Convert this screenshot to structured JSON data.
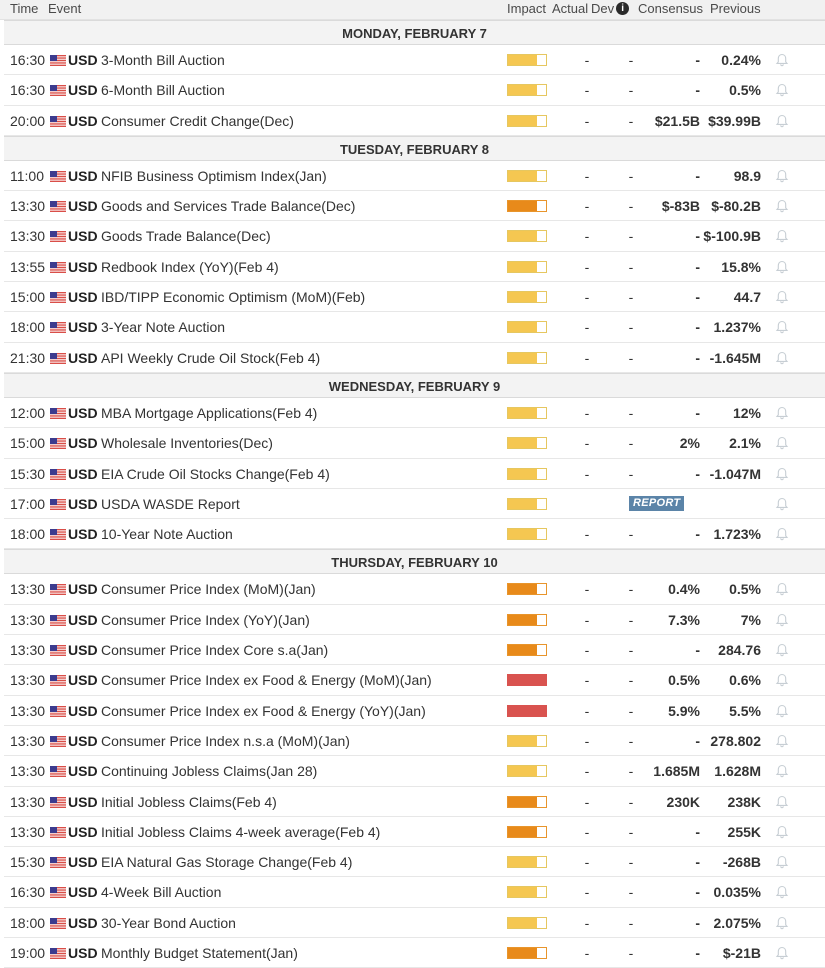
{
  "header": {
    "time": "Time",
    "event": "Event",
    "impact": "Impact",
    "actual": "Actual",
    "dev": "Dev",
    "info": "i",
    "consensus": "Consensus",
    "previous": "Previous"
  },
  "colors": {
    "low": "#f5c751",
    "medium": "#e88a1a",
    "high": "#d9534f",
    "report": "#5b84a8"
  },
  "days": [
    {
      "label": "MONDAY, FEBRUARY 7",
      "rows": [
        {
          "time": "16:30",
          "cur": "USD",
          "event": "3-Month Bill Auction",
          "impact": "low",
          "actual": "-",
          "dev": "-",
          "cons": "-",
          "prev": "0.24%"
        },
        {
          "time": "16:30",
          "cur": "USD",
          "event": "6-Month Bill Auction",
          "impact": "low",
          "actual": "-",
          "dev": "-",
          "cons": "-",
          "prev": "0.5%"
        },
        {
          "time": "20:00",
          "cur": "USD",
          "event": "Consumer Credit Change(Dec)",
          "impact": "low",
          "actual": "-",
          "dev": "-",
          "cons": "$21.5B",
          "prev": "$39.99B"
        }
      ]
    },
    {
      "label": "TUESDAY, FEBRUARY 8",
      "rows": [
        {
          "time": "11:00",
          "cur": "USD",
          "event": "NFIB Business Optimism Index(Jan)",
          "impact": "low",
          "actual": "-",
          "dev": "-",
          "cons": "-",
          "prev": "98.9"
        },
        {
          "time": "13:30",
          "cur": "USD",
          "event": "Goods and Services Trade Balance(Dec)",
          "impact": "medium",
          "actual": "-",
          "dev": "-",
          "cons": "$-83B",
          "prev": "$-80.2B"
        },
        {
          "time": "13:30",
          "cur": "USD",
          "event": "Goods Trade Balance(Dec)",
          "impact": "low",
          "actual": "-",
          "dev": "-",
          "cons": "-",
          "prev": "$-100.9B"
        },
        {
          "time": "13:55",
          "cur": "USD",
          "event": "Redbook Index (YoY)(Feb 4)",
          "impact": "low",
          "actual": "-",
          "dev": "-",
          "cons": "-",
          "prev": "15.8%"
        },
        {
          "time": "15:00",
          "cur": "USD",
          "event": "IBD/TIPP Economic Optimism (MoM)(Feb)",
          "impact": "low",
          "actual": "-",
          "dev": "-",
          "cons": "-",
          "prev": "44.7"
        },
        {
          "time": "18:00",
          "cur": "USD",
          "event": "3-Year Note Auction",
          "impact": "low",
          "actual": "-",
          "dev": "-",
          "cons": "-",
          "prev": "1.237%"
        },
        {
          "time": "21:30",
          "cur": "USD",
          "event": "API Weekly Crude Oil Stock(Feb 4)",
          "impact": "low",
          "actual": "-",
          "dev": "-",
          "cons": "-",
          "prev": "-1.645M"
        }
      ]
    },
    {
      "label": "WEDNESDAY, FEBRUARY 9",
      "rows": [
        {
          "time": "12:00",
          "cur": "USD",
          "event": "MBA Mortgage Applications(Feb 4)",
          "impact": "low",
          "actual": "-",
          "dev": "-",
          "cons": "-",
          "prev": "12%"
        },
        {
          "time": "15:00",
          "cur": "USD",
          "event": "Wholesale Inventories(Dec)",
          "impact": "low",
          "actual": "-",
          "dev": "-",
          "cons": "2%",
          "prev": "2.1%"
        },
        {
          "time": "15:30",
          "cur": "USD",
          "event": "EIA Crude Oil Stocks Change(Feb 4)",
          "impact": "low",
          "actual": "-",
          "dev": "-",
          "cons": "-",
          "prev": "-1.047M"
        },
        {
          "time": "17:00",
          "cur": "USD",
          "event": "USDA WASDE Report",
          "impact": "low",
          "report": "REPORT"
        },
        {
          "time": "18:00",
          "cur": "USD",
          "event": "10-Year Note Auction",
          "impact": "low",
          "actual": "-",
          "dev": "-",
          "cons": "-",
          "prev": "1.723%"
        }
      ]
    },
    {
      "label": "THURSDAY, FEBRUARY 10",
      "rows": [
        {
          "time": "13:30",
          "cur": "USD",
          "event": "Consumer Price Index (MoM)(Jan)",
          "impact": "medium",
          "actual": "-",
          "dev": "-",
          "cons": "0.4%",
          "prev": "0.5%"
        },
        {
          "time": "13:30",
          "cur": "USD",
          "event": "Consumer Price Index (YoY)(Jan)",
          "impact": "medium",
          "actual": "-",
          "dev": "-",
          "cons": "7.3%",
          "prev": "7%"
        },
        {
          "time": "13:30",
          "cur": "USD",
          "event": "Consumer Price Index Core s.a(Jan)",
          "impact": "medium",
          "actual": "-",
          "dev": "-",
          "cons": "-",
          "prev": "284.76"
        },
        {
          "time": "13:30",
          "cur": "USD",
          "event": "Consumer Price Index ex Food & Energy (MoM)(Jan)",
          "impact": "high",
          "actual": "-",
          "dev": "-",
          "cons": "0.5%",
          "prev": "0.6%"
        },
        {
          "time": "13:30",
          "cur": "USD",
          "event": "Consumer Price Index ex Food & Energy (YoY)(Jan)",
          "impact": "high",
          "actual": "-",
          "dev": "-",
          "cons": "5.9%",
          "prev": "5.5%"
        },
        {
          "time": "13:30",
          "cur": "USD",
          "event": "Consumer Price Index n.s.a (MoM)(Jan)",
          "impact": "low",
          "actual": "-",
          "dev": "-",
          "cons": "-",
          "prev": "278.802"
        },
        {
          "time": "13:30",
          "cur": "USD",
          "event": "Continuing Jobless Claims(Jan 28)",
          "impact": "low",
          "actual": "-",
          "dev": "-",
          "cons": "1.685M",
          "prev": "1.628M"
        },
        {
          "time": "13:30",
          "cur": "USD",
          "event": "Initial Jobless Claims(Feb 4)",
          "impact": "medium",
          "actual": "-",
          "dev": "-",
          "cons": "230K",
          "prev": "238K"
        },
        {
          "time": "13:30",
          "cur": "USD",
          "event": "Initial Jobless Claims 4-week average(Feb 4)",
          "impact": "medium",
          "actual": "-",
          "dev": "-",
          "cons": "-",
          "prev": "255K"
        },
        {
          "time": "15:30",
          "cur": "USD",
          "event": "EIA Natural Gas Storage Change(Feb 4)",
          "impact": "low",
          "actual": "-",
          "dev": "-",
          "cons": "-",
          "prev": "-268B"
        },
        {
          "time": "16:30",
          "cur": "USD",
          "event": "4-Week Bill Auction",
          "impact": "low",
          "actual": "-",
          "dev": "-",
          "cons": "-",
          "prev": "0.035%"
        },
        {
          "time": "18:00",
          "cur": "USD",
          "event": "30-Year Bond Auction",
          "impact": "low",
          "actual": "-",
          "dev": "-",
          "cons": "-",
          "prev": "2.075%"
        },
        {
          "time": "19:00",
          "cur": "USD",
          "event": "Monthly Budget Statement(Jan)",
          "impact": "medium",
          "actual": "-",
          "dev": "-",
          "cons": "-",
          "prev": "$-21B"
        }
      ]
    }
  ]
}
